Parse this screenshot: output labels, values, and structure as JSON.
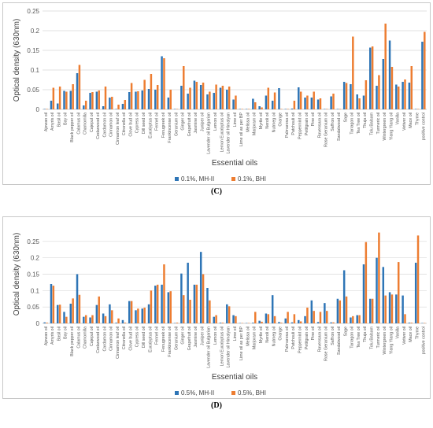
{
  "chart_data": [
    {
      "type": "bar",
      "panel_label": "(C)",
      "xlabel": "Essential oils",
      "ylabel": "Optical density (630nm)",
      "ylim": [
        0,
        0.25
      ],
      "yticks": [
        "0",
        "0.05",
        "0.1",
        "0.15",
        "0.2",
        "0.25"
      ],
      "grid": true,
      "legend": "bottom",
      "categories": [
        "Ajowan oil",
        "Amyris oil",
        "Basil oil",
        "Bay oil",
        "Black pepper oil",
        "Calamus oil",
        "Chamomilla",
        "Cajeput oil",
        "Cedarwood oil",
        "Cardamon oil",
        "Cinnamon oil",
        "Cinnamon leaf oil",
        "Citronella oil",
        "Clove bud oil",
        "Cypress oil",
        "Dill seed oil",
        "Eucalyptus oil",
        "Fennel oil",
        "Fenugreek oil",
        "Frankincense oil",
        "Geranium oil",
        "Ginger oil",
        "Grapefruit oil",
        "Jasmine oil",
        "Juniper oil",
        "Lavender oil Bulgarian",
        "Lemon oil",
        "Lemon Eucalyptus oil",
        "Lavender oil Himalyan",
        "Lime oil",
        "Lime oil as per BP",
        "Melissa oil",
        "Marjoram oil",
        "Myrtle oil",
        "Neroli oil",
        "Nutmeg oil",
        "Orange",
        "Palmarosa oil",
        "Patchouli oil",
        "Peppermint oil",
        "Petitgrain oil",
        "Pine oil",
        "Ravensara oil",
        "Rose Geranium oil",
        "Saffron oil",
        "Sandalwood oil",
        "Sage",
        "Tarragon oil",
        "Tea Tree oil",
        "Thuja oil",
        "Tolu Balsam",
        "Turmeric oil",
        "Wintergreen oil",
        "Ylang Ylang oil",
        "Vanilla",
        "Vetiver oil",
        "Mace oil",
        "Thyme",
        "positive control"
      ],
      "series": [
        {
          "name": "0.1%, MH-II",
          "color": "#2e75b6",
          "values": [
            0.001,
            0.022,
            0.015,
            0.047,
            0.047,
            0.092,
            0.01,
            0.042,
            0.045,
            0.008,
            0.03,
            0.001,
            0.014,
            0.044,
            0.045,
            0.048,
            0.052,
            0.05,
            0.135,
            0.03,
            0.001,
            0.06,
            0.04,
            0.073,
            0.062,
            0.038,
            0.042,
            0.055,
            0.05,
            0.025,
            0.001,
            0.001,
            0.027,
            0.008,
            0.035,
            0.022,
            0.054,
            0.001,
            0.002,
            0.056,
            0.03,
            0.03,
            0.025,
            0.001,
            0.033,
            0.001,
            0.07,
            0.064,
            0.038,
            0.035,
            0.157,
            0.06,
            0.128,
            0.175,
            0.063,
            0.07,
            0.068,
            0.001,
            0.172
          ]
        },
        {
          "name": "0.1%, BHI",
          "color": "#ed7d31",
          "values": [
            0.001,
            0.055,
            0.058,
            0.045,
            0.064,
            0.113,
            0.022,
            0.044,
            0.048,
            0.058,
            0.032,
            0.012,
            0.024,
            0.067,
            0.046,
            0.075,
            0.09,
            0.062,
            0.13,
            0.05,
            0.001,
            0.11,
            0.055,
            0.07,
            0.068,
            0.045,
            0.063,
            0.06,
            0.058,
            0.035,
            0.001,
            0.001,
            0.018,
            0.005,
            0.055,
            0.043,
            0.001,
            0.001,
            0.022,
            0.045,
            0.035,
            0.045,
            0.028,
            0.001,
            0.04,
            0.001,
            0.067,
            0.185,
            0.028,
            0.074,
            0.16,
            0.087,
            0.218,
            0.108,
            0.058,
            0.076,
            0.11,
            0.001,
            0.197
          ]
        }
      ]
    },
    {
      "type": "bar",
      "panel_label": "(D)",
      "xlabel": "Essential oils",
      "ylabel": "Optical density (630nm)",
      "ylim": [
        0,
        0.3
      ],
      "yticks": [
        "0",
        "0.05",
        "0.1",
        "0.15",
        "0.2",
        "0.25"
      ],
      "grid": true,
      "legend": "bottom",
      "categories": [
        "Ajowan oil",
        "Amyris oil",
        "Basil oil",
        "Bay oil",
        "Black pepper oil",
        "Calamus oil",
        "Chamomilla",
        "Cajeput oil",
        "Cedarwood oil",
        "Cardamon oil",
        "Cinnamon oil",
        "Cinnamon leaf oil",
        "Citronella oil",
        "Clove bud oil",
        "Cypress oil",
        "Dill seed oil",
        "Eucalyptus oil",
        "Fennel oil",
        "Fenugreek oil",
        "Frankincense oil",
        "Geranium oil",
        "Ginger oil",
        "Grapefruit oil",
        "Jasmine oil",
        "Juniper oil",
        "Lavender oil Bulgarian",
        "Lemon oil",
        "Lemon Eucalyptus oil",
        "Lavender oil Himalyan",
        "Lime oil",
        "Lime oil as per BP",
        "Melissa oil",
        "Marjoram oil",
        "Myrtle oil",
        "Neroli oil",
        "Nutmeg oil",
        "Orange",
        "Palmarosa oil",
        "Patchouli oil",
        "Peppermint oil",
        "Petitgrain oil",
        "Pine oil",
        "Ravensara oil",
        "Rose Geranium oil",
        "Saffron oil",
        "Sandalwood oil",
        "Sage",
        "Tarragon oil",
        "Tea Tree oil",
        "Thuja oil",
        "Tolu Balsam",
        "Turmeric oil",
        "Wintergreen oil",
        "Ylang Ylang oil",
        "Vanilla",
        "Vetiver oil",
        "Mace oil",
        "Thyme",
        "positive control"
      ],
      "series": [
        {
          "name": "0.5%, MH-II",
          "color": "#2e75b6",
          "values": [
            0.003,
            0.12,
            0.056,
            0.035,
            0.06,
            0.15,
            0.02,
            0.018,
            0.056,
            0.03,
            0.058,
            0.002,
            0.01,
            0.068,
            0.04,
            0.045,
            0.058,
            0.115,
            0.118,
            0.095,
            0.001,
            0.152,
            0.185,
            0.118,
            0.218,
            0.108,
            0.02,
            0.002,
            0.058,
            0.025,
            0.001,
            0.001,
            0.002,
            0.008,
            0.03,
            0.086,
            0.004,
            0.015,
            0.003,
            0.01,
            0.022,
            0.07,
            0.004,
            0.062,
            0.003,
            0.075,
            0.162,
            0.018,
            0.025,
            0.18,
            0.075,
            0.2,
            0.172,
            0.095,
            0.088,
            0.085,
            0.002,
            0.185,
            0.001
          ]
        },
        {
          "name": "0.5%, BHI",
          "color": "#ed7d31",
          "values": [
            0.002,
            0.115,
            0.057,
            0.02,
            0.076,
            0.087,
            0.025,
            0.025,
            0.082,
            0.022,
            0.04,
            0.015,
            0.002,
            0.068,
            0.045,
            0.048,
            0.1,
            0.118,
            0.18,
            0.098,
            0.002,
            0.086,
            0.072,
            0.118,
            0.15,
            0.07,
            0.025,
            0.002,
            0.052,
            0.022,
            0.001,
            0.001,
            0.035,
            0.005,
            0.028,
            0.022,
            0.002,
            0.035,
            0.028,
            0.006,
            0.048,
            0.038,
            0.035,
            0.038,
            0.003,
            0.07,
            0.082,
            0.022,
            0.025,
            0.248,
            0.075,
            0.277,
            0.085,
            0.088,
            0.187,
            0.028,
            0.002,
            0.268,
            0.001
          ]
        }
      ]
    }
  ]
}
